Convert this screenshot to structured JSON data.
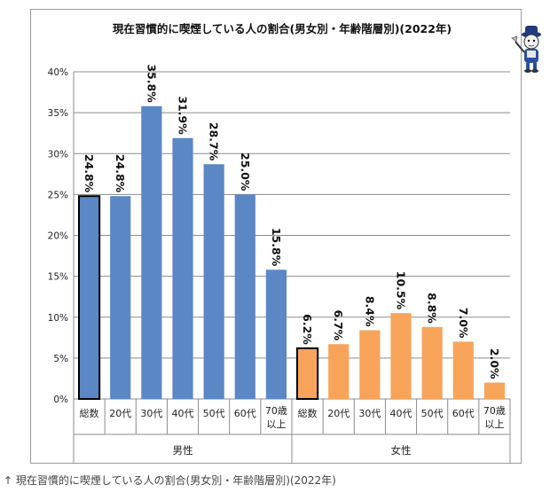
{
  "chart_data": {
    "type": "bar",
    "title": "現在習慣的に喫煙している人の割合(男女別・年齢階層別)(2022年)",
    "ylim": [
      0,
      40
    ],
    "yticks": [
      "0%",
      "5%",
      "10%",
      "15%",
      "20%",
      "25%",
      "30%",
      "35%",
      "40%"
    ],
    "grid": true,
    "groups": [
      {
        "name": "男性",
        "color": "#5b87c5",
        "highlight_color": "#5b87c5",
        "categories": [
          "総数",
          "20代",
          "30代",
          "40代",
          "50代",
          "60代",
          "70歳\n以上"
        ],
        "values": [
          24.8,
          24.8,
          35.8,
          31.9,
          28.7,
          25.0,
          15.8
        ],
        "labels": [
          "24.8%",
          "24.8%",
          "35.8%",
          "31.9%",
          "28.7%",
          "25.0%",
          "15.8%"
        ]
      },
      {
        "name": "女性",
        "color": "#f7a45a",
        "highlight_color": "#f7a45a",
        "categories": [
          "総数",
          "20代",
          "30代",
          "40代",
          "50代",
          "60代",
          "70歳\n以上"
        ],
        "values": [
          6.2,
          6.7,
          8.4,
          10.5,
          8.8,
          7.0,
          2.0
        ],
        "labels": [
          "6.2%",
          "6.7%",
          "8.4%",
          "10.5%",
          "8.8%",
          "7.0%",
          "2.0%"
        ]
      }
    ],
    "highlighted_category": "総数"
  },
  "caption": "↑ 現在習慣的に喫煙している人の割合(男女別・年齢階層別)(2022年)",
  "mascot_icon": "cat-mascot-icon"
}
